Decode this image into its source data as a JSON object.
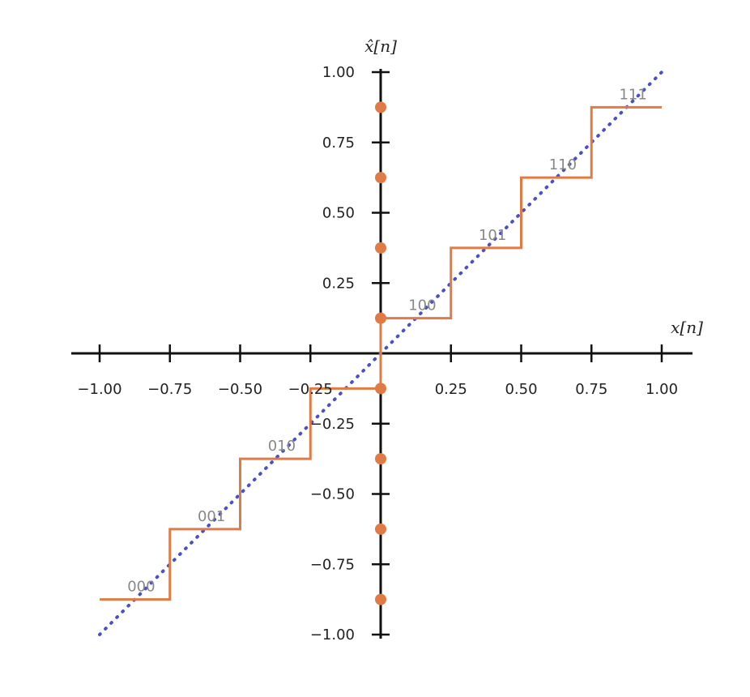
{
  "chart_data": {
    "type": "line",
    "title": "",
    "xlabel": "x[n]",
    "ylabel": "x̂[n]",
    "xlim": [
      -1.0,
      1.0
    ],
    "ylim": [
      -1.0,
      1.0
    ],
    "x_ticks": [
      -1.0,
      -0.75,
      -0.5,
      -0.25,
      0.25,
      0.5,
      0.75,
      1.0
    ],
    "x_tick_labels": [
      "−1.00",
      "−0.75",
      "−0.50",
      "−0.25",
      "0.25",
      "0.50",
      "0.75",
      "1.00"
    ],
    "y_ticks": [
      1.0,
      0.75,
      0.5,
      0.25,
      -0.25,
      -0.5,
      -0.75,
      -1.0
    ],
    "y_tick_labels": [
      "1.00",
      "0.75",
      "0.50",
      "0.25",
      "−0.25",
      "−0.50",
      "−0.75",
      "−1.00"
    ],
    "grid": false,
    "identity_line": {
      "x": [
        -1.0,
        1.0
      ],
      "y": [
        -1.0,
        1.0
      ]
    },
    "steps": [
      {
        "x0": -1.0,
        "x1": -0.75,
        "level": -0.875,
        "code": "000"
      },
      {
        "x0": -0.75,
        "x1": -0.5,
        "level": -0.625,
        "code": "001"
      },
      {
        "x0": -0.5,
        "x1": -0.25,
        "level": -0.375,
        "code": "010"
      },
      {
        "x0": -0.25,
        "x1": 0.0,
        "level": -0.125,
        "code": ""
      },
      {
        "x0": 0.0,
        "x1": 0.25,
        "level": 0.125,
        "code": "100"
      },
      {
        "x0": 0.25,
        "x1": 0.5,
        "level": 0.375,
        "code": "101"
      },
      {
        "x0": 0.5,
        "x1": 0.75,
        "level": 0.625,
        "code": "110"
      },
      {
        "x0": 0.75,
        "x1": 1.0,
        "level": 0.875,
        "code": "111"
      }
    ],
    "levels": [
      0.875,
      0.625,
      0.375,
      0.125,
      -0.125,
      -0.375,
      -0.625,
      -0.875
    ],
    "colors": {
      "step": "#e07b45",
      "identity": "#4a4fcf",
      "axis": "#111111",
      "code": "#888888"
    }
  }
}
